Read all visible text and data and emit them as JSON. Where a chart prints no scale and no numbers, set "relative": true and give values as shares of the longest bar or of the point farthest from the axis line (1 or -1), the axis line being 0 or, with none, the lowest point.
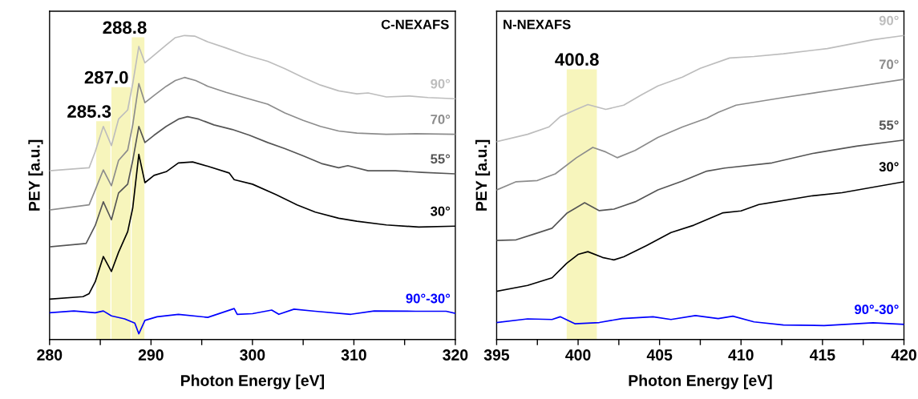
{
  "chart_data": [
    {
      "type": "line",
      "title": "C-NEXAFS",
      "xlabel": "Photon Energy [eV]",
      "ylabel": "PEY [a.u.]",
      "relative": true,
      "tick_labels": "x",
      "grid": false,
      "legend": false,
      "line_style": "solid",
      "xlim": [
        280,
        320
      ],
      "xticks": [
        280,
        {
          "value": 285,
          "label": null
        },
        290,
        {
          "value": 295,
          "label": null
        },
        300,
        {
          "value": 305,
          "label": null
        },
        310,
        {
          "value": 315,
          "label": null
        },
        320
      ],
      "bands": [
        {
          "axis": "x",
          "from": 284.6,
          "to": 286.0,
          "color": "#f7f5bc"
        },
        {
          "axis": "x",
          "from": 286.1,
          "to": 288.0,
          "color": "#f7f5bc"
        },
        {
          "axis": "x",
          "from": 288.1,
          "to": 289.35,
          "color": "#f7f5bc"
        }
      ],
      "annotations": [
        {
          "text": "285.3",
          "x": 285.3,
          "y": 0.718
        },
        {
          "text": "287.0",
          "x": 287.0,
          "y": 0.83
        },
        {
          "text": "288.8",
          "x": 288.8,
          "y": 0.994
        }
      ],
      "series": [
        {
          "name": "90°",
          "color": "#bdbdbd",
          "x": [
            280,
            283.9,
            284.5,
            285.3,
            286.1,
            286.8,
            287.7,
            288.2,
            288.8,
            289.4,
            290.3,
            291.5,
            292.4,
            293.3,
            294.3,
            295.6,
            297.4,
            299.4,
            301.5,
            303.2,
            305.0,
            306.7,
            308.5,
            310.3,
            311.4,
            313.2,
            315.5,
            317.3,
            320
          ],
          "values": [
            0.555,
            0.565,
            0.618,
            0.701,
            0.638,
            0.725,
            0.755,
            0.842,
            0.964,
            0.91,
            0.935,
            0.969,
            0.993,
            1.0,
            0.998,
            0.979,
            0.959,
            0.935,
            0.915,
            0.891,
            0.862,
            0.837,
            0.818,
            0.808,
            0.811,
            0.798,
            0.801,
            0.796,
            0.792
          ]
        },
        {
          "name": "70°",
          "color": "#8c8c8c",
          "x": [
            280,
            283.9,
            284.5,
            285.3,
            286.1,
            286.8,
            287.7,
            288.2,
            288.8,
            289.4,
            290.3,
            291.5,
            292.4,
            293.3,
            294.4,
            295.6,
            297.4,
            299.4,
            301.5,
            303.2,
            305.0,
            306.7,
            308.5,
            310.3,
            313.2,
            316.1,
            320
          ],
          "values": [
            0.426,
            0.443,
            0.492,
            0.558,
            0.506,
            0.589,
            0.623,
            0.706,
            0.842,
            0.779,
            0.803,
            0.833,
            0.852,
            0.862,
            0.852,
            0.833,
            0.813,
            0.794,
            0.774,
            0.745,
            0.721,
            0.701,
            0.686,
            0.679,
            0.675,
            0.677,
            0.675
          ]
        },
        {
          "name": "55°",
          "color": "#555555",
          "x": [
            280,
            283.6,
            284.5,
            285.3,
            286.1,
            286.8,
            287.7,
            288.2,
            288.8,
            289.4,
            290.3,
            291.5,
            292.7,
            293.6,
            294.7,
            296.2,
            298.0,
            299.7,
            301.5,
            303.2,
            305.0,
            306.8,
            308.5,
            309.4,
            311.4,
            314.1,
            316.7,
            320
          ],
          "values": [
            0.305,
            0.316,
            0.375,
            0.453,
            0.394,
            0.482,
            0.511,
            0.589,
            0.701,
            0.648,
            0.672,
            0.701,
            0.725,
            0.733,
            0.725,
            0.706,
            0.691,
            0.672,
            0.648,
            0.628,
            0.604,
            0.579,
            0.565,
            0.572,
            0.555,
            0.555,
            0.55,
            0.545
          ]
        },
        {
          "name": "30°",
          "color": "#000000",
          "x": [
            280,
            283.3,
            283.9,
            284.5,
            285.3,
            286.1,
            286.8,
            287.7,
            288.2,
            288.8,
            289.4,
            290.3,
            291.5,
            292.7,
            294.1,
            295.6,
            297.7,
            298.2,
            300.0,
            302.3,
            304.4,
            306.2,
            308.5,
            310.3,
            313.2,
            316.4,
            320
          ],
          "values": [
            0.133,
            0.141,
            0.151,
            0.19,
            0.273,
            0.224,
            0.287,
            0.355,
            0.433,
            0.609,
            0.516,
            0.54,
            0.552,
            0.581,
            0.584,
            0.57,
            0.548,
            0.526,
            0.511,
            0.477,
            0.443,
            0.419,
            0.399,
            0.389,
            0.377,
            0.37,
            0.373
          ]
        },
        {
          "name": "90°-30°",
          "color": "#0000ff",
          "x": [
            280,
            282.4,
            284.5,
            285.3,
            286.1,
            287.4,
            288.4,
            288.8,
            289.4,
            290.6,
            292.7,
            295.6,
            298.2,
            298.5,
            300.0,
            301.9,
            302.6,
            304.1,
            306.2,
            309.7,
            312.0,
            316.1,
            319.1,
            320
          ],
          "values": [
            0.088,
            0.094,
            0.088,
            0.094,
            0.078,
            0.068,
            0.054,
            0.019,
            0.063,
            0.075,
            0.083,
            0.073,
            0.102,
            0.083,
            0.085,
            0.097,
            0.083,
            0.1,
            0.093,
            0.083,
            0.094,
            0.093,
            0.093,
            0.086
          ]
        }
      ]
    },
    {
      "type": "line",
      "title": "N-NEXAFS",
      "xlabel": "Photon Energy [eV]",
      "ylabel": "PEY [a.u.]",
      "relative": true,
      "tick_labels": "x",
      "grid": false,
      "legend": false,
      "line_style": "solid",
      "xlim": [
        395,
        420
      ],
      "xticks": [
        395,
        {
          "value": 397.5,
          "label": null
        },
        400,
        {
          "value": 402.5,
          "label": null
        },
        405,
        {
          "value": 407.5,
          "label": null
        },
        410,
        {
          "value": 412.5,
          "label": null
        },
        415,
        {
          "value": 417.5,
          "label": null
        },
        420
      ],
      "bands": [
        {
          "axis": "x",
          "from": 399.3,
          "to": 401.15,
          "color": "#f7f5bc"
        }
      ],
      "annotations": [
        {
          "text": "400.8",
          "x": 400.8,
          "y": 0.889
        }
      ],
      "series": [
        {
          "name": "90°",
          "color": "#bdbdbd",
          "x": [
            395,
            396.9,
            398.2,
            398.9,
            399.9,
            400.6,
            401.7,
            402.8,
            403.9,
            404.9,
            406.4,
            407.5,
            409.3,
            410.8,
            412.6,
            415.3,
            418.1,
            420
          ],
          "values": [
            0.651,
            0.675,
            0.699,
            0.733,
            0.757,
            0.773,
            0.757,
            0.771,
            0.805,
            0.834,
            0.863,
            0.892,
            0.926,
            0.931,
            0.94,
            0.957,
            0.986,
            1.0
          ]
        },
        {
          "name": "70°",
          "color": "#8c8c8c",
          "x": [
            395,
            396.2,
            397.5,
            398.6,
            399.9,
            400.9,
            401.7,
            402.4,
            403.5,
            404.9,
            406.4,
            407.9,
            408.6,
            409.7,
            412.6,
            416.2,
            420
          ],
          "values": [
            0.492,
            0.519,
            0.523,
            0.545,
            0.598,
            0.632,
            0.617,
            0.598,
            0.622,
            0.665,
            0.699,
            0.728,
            0.747,
            0.771,
            0.796,
            0.825,
            0.856
          ]
        },
        {
          "name": "55°",
          "color": "#555555",
          "x": [
            395,
            396.2,
            397.3,
            398.4,
            399.3,
            400.4,
            401.3,
            402.2,
            403.5,
            404.9,
            406.4,
            407.9,
            409.0,
            411.9,
            414.4,
            417.1,
            420
          ],
          "values": [
            0.326,
            0.328,
            0.347,
            0.366,
            0.415,
            0.45,
            0.424,
            0.429,
            0.453,
            0.492,
            0.521,
            0.554,
            0.564,
            0.581,
            0.612,
            0.636,
            0.656
          ]
        },
        {
          "name": "30°",
          "color": "#000000",
          "x": [
            395,
            396.9,
            398.4,
            399.3,
            400.0,
            400.6,
            401.5,
            402.2,
            402.8,
            404.2,
            405.7,
            407.1,
            408.9,
            410.0,
            411.1,
            414.4,
            416.2,
            420
          ],
          "values": [
            0.159,
            0.178,
            0.203,
            0.251,
            0.28,
            0.289,
            0.27,
            0.262,
            0.272,
            0.309,
            0.352,
            0.376,
            0.417,
            0.423,
            0.444,
            0.473,
            0.483,
            0.519
          ]
        },
        {
          "name": "90°-30°",
          "color": "#0000ff",
          "x": [
            395,
            396.9,
            398.4,
            398.9,
            399.8,
            401.3,
            402.7,
            404.6,
            405.7,
            407.2,
            408.6,
            409.5,
            410.8,
            412.6,
            415.1,
            418.1,
            420
          ],
          "values": [
            0.056,
            0.068,
            0.066,
            0.075,
            0.052,
            0.056,
            0.069,
            0.075,
            0.066,
            0.079,
            0.069,
            0.077,
            0.058,
            0.048,
            0.046,
            0.055,
            0.05
          ]
        }
      ]
    }
  ]
}
